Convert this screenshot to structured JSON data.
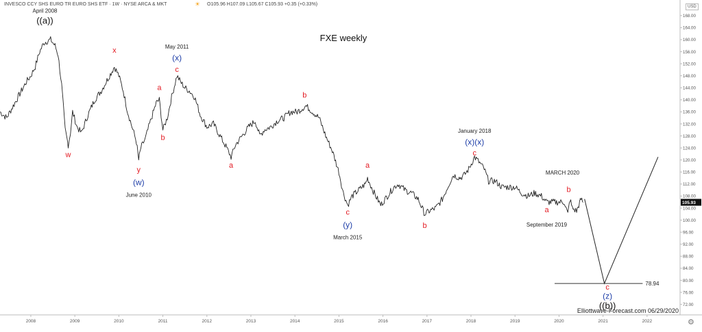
{
  "header": {
    "instrument": "INVESCO CCY SHS EURO TR EURO SHS ETF · 1W · NYSE ARCA & MKT",
    "ohlc": "O105.96 H107.09 L105.67 C105.93 +0.35 (+0.33%)",
    "currency": "USD",
    "sun_icon": "sun-icon",
    "gear_icon": "gear-icon"
  },
  "chart_data": {
    "type": "line",
    "title": "FXE weekly",
    "xlabel": "",
    "ylabel": "",
    "xlim": [
      2007.3,
      2022.75
    ],
    "ylim": [
      68.5,
      170
    ],
    "x_ticks": [
      "2008",
      "2009",
      "2010",
      "2011",
      "2012",
      "2013",
      "2014",
      "2015",
      "2016",
      "2017",
      "2018",
      "2019",
      "2020",
      "2021",
      "2022"
    ],
    "y_ticks": [
      "72.00",
      "76.00",
      "80.00",
      "84.00",
      "88.00",
      "92.00",
      "96.00",
      "100.00",
      "104.00",
      "108.00",
      "112.00",
      "116.00",
      "120.00",
      "124.00",
      "128.00",
      "132.00",
      "136.00",
      "140.00",
      "144.00",
      "148.00",
      "152.00",
      "156.00",
      "160.00",
      "164.00",
      "168.00"
    ],
    "last_price": "105.93",
    "level_line": {
      "value": 78.94,
      "label": "78.94",
      "x_start": 2019.9,
      "x_end": 2021.9
    },
    "series": [
      {
        "values": [
          [
            2007.3,
            136
          ],
          [
            2007.45,
            134
          ],
          [
            2007.6,
            138
          ],
          [
            2007.75,
            142
          ],
          [
            2007.9,
            146
          ],
          [
            2008.0,
            148
          ],
          [
            2008.1,
            151
          ],
          [
            2008.2,
            156
          ],
          [
            2008.3,
            159
          ],
          [
            2008.45,
            160
          ],
          [
            2008.55,
            158
          ],
          [
            2008.62,
            155
          ],
          [
            2008.7,
            145
          ],
          [
            2008.78,
            130
          ],
          [
            2008.85,
            125
          ],
          [
            2008.9,
            129
          ],
          [
            2008.95,
            136
          ],
          [
            2009.05,
            131
          ],
          [
            2009.15,
            129
          ],
          [
            2009.3,
            135
          ],
          [
            2009.45,
            140
          ],
          [
            2009.6,
            143
          ],
          [
            2009.75,
            147
          ],
          [
            2009.9,
            151
          ],
          [
            2010.0,
            148
          ],
          [
            2010.1,
            143
          ],
          [
            2010.2,
            136
          ],
          [
            2010.3,
            131
          ],
          [
            2010.4,
            126
          ],
          [
            2010.45,
            120
          ],
          [
            2010.5,
            124
          ],
          [
            2010.6,
            127
          ],
          [
            2010.7,
            132
          ],
          [
            2010.85,
            139
          ],
          [
            2010.92,
            140
          ],
          [
            2011.0,
            130
          ],
          [
            2011.1,
            134
          ],
          [
            2011.2,
            141
          ],
          [
            2011.32,
            148
          ],
          [
            2011.4,
            146
          ],
          [
            2011.5,
            144
          ],
          [
            2011.6,
            143
          ],
          [
            2011.72,
            141
          ],
          [
            2011.85,
            135
          ],
          [
            2012.0,
            131
          ],
          [
            2012.15,
            132
          ],
          [
            2012.3,
            128
          ],
          [
            2012.45,
            124
          ],
          [
            2012.55,
            121
          ],
          [
            2012.65,
            125
          ],
          [
            2012.8,
            128
          ],
          [
            2012.95,
            131
          ],
          [
            2013.1,
            133
          ],
          [
            2013.2,
            128
          ],
          [
            2013.3,
            130
          ],
          [
            2013.45,
            131
          ],
          [
            2013.6,
            133
          ],
          [
            2013.75,
            134
          ],
          [
            2013.9,
            136
          ],
          [
            2014.05,
            136
          ],
          [
            2014.15,
            137
          ],
          [
            2014.25,
            138
          ],
          [
            2014.4,
            136
          ],
          [
            2014.55,
            134
          ],
          [
            2014.7,
            128
          ],
          [
            2014.85,
            123
          ],
          [
            2015.0,
            116
          ],
          [
            2015.1,
            109
          ],
          [
            2015.2,
            105
          ],
          [
            2015.3,
            108
          ],
          [
            2015.45,
            110
          ],
          [
            2015.6,
            112
          ],
          [
            2015.65,
            114
          ],
          [
            2015.8,
            109
          ],
          [
            2015.95,
            105
          ],
          [
            2016.1,
            108
          ],
          [
            2016.25,
            111
          ],
          [
            2016.35,
            112
          ],
          [
            2016.5,
            110
          ],
          [
            2016.65,
            109
          ],
          [
            2016.8,
            107
          ],
          [
            2016.95,
            102
          ],
          [
            2017.05,
            103
          ],
          [
            2017.2,
            104
          ],
          [
            2017.35,
            107
          ],
          [
            2017.5,
            112
          ],
          [
            2017.6,
            115
          ],
          [
            2017.75,
            114
          ],
          [
            2017.85,
            115
          ],
          [
            2017.95,
            117
          ],
          [
            2018.08,
            121
          ],
          [
            2018.2,
            119
          ],
          [
            2018.3,
            117
          ],
          [
            2018.4,
            113
          ],
          [
            2018.55,
            113
          ],
          [
            2018.7,
            111
          ],
          [
            2018.85,
            111
          ],
          [
            2019.0,
            111
          ],
          [
            2019.15,
            109
          ],
          [
            2019.3,
            108
          ],
          [
            2019.45,
            109
          ],
          [
            2019.6,
            108
          ],
          [
            2019.72,
            106
          ],
          [
            2019.85,
            106
          ],
          [
            2020.0,
            106
          ],
          [
            2020.12,
            106
          ],
          [
            2020.2,
            102
          ],
          [
            2020.25,
            107
          ],
          [
            2020.3,
            104
          ],
          [
            2020.4,
            103
          ],
          [
            2020.45,
            105
          ],
          [
            2020.5,
            107
          ],
          [
            2020.55,
            105.93
          ]
        ]
      },
      {
        "values": [
          [
            2020.58,
            107
          ],
          [
            2021.03,
            78.94
          ],
          [
            2022.25,
            121
          ]
        ]
      }
    ],
    "annotations": [
      {
        "text": "April 2008",
        "x": 2008.32,
        "y": 169.0,
        "color": "#222222",
        "size": 8
      },
      {
        "text": "((a))",
        "x": 2008.32,
        "y": 165.3,
        "color": "#111111",
        "size": 13
      },
      {
        "text": "x",
        "x": 2009.9,
        "y": 155.7,
        "color": "#e31b23",
        "size": 11
      },
      {
        "text": "w",
        "x": 2008.85,
        "y": 121.0,
        "color": "#e31b23",
        "size": 11
      },
      {
        "text": "y",
        "x": 2010.45,
        "y": 116.0,
        "color": "#e31b23",
        "size": 11
      },
      {
        "text": "(w)",
        "x": 2010.45,
        "y": 111.6,
        "color": "#1f3fa8",
        "size": 12
      },
      {
        "text": "June 2010",
        "x": 2010.45,
        "y": 107.8,
        "color": "#222222",
        "size": 8
      },
      {
        "text": "May 2011",
        "x": 2011.32,
        "y": 157.0,
        "color": "#222222",
        "size": 8
      },
      {
        "text": "(x)",
        "x": 2011.32,
        "y": 153.0,
        "color": "#1f3fa8",
        "size": 12
      },
      {
        "text": "c",
        "x": 2011.32,
        "y": 149.3,
        "color": "#e31b23",
        "size": 11
      },
      {
        "text": "a",
        "x": 2010.92,
        "y": 143.3,
        "color": "#e31b23",
        "size": 11
      },
      {
        "text": "b",
        "x": 2011.0,
        "y": 126.6,
        "color": "#e31b23",
        "size": 11
      },
      {
        "text": "a",
        "x": 2012.55,
        "y": 117.4,
        "color": "#e31b23",
        "size": 11
      },
      {
        "text": "b",
        "x": 2014.22,
        "y": 140.7,
        "color": "#e31b23",
        "size": 11
      },
      {
        "text": "c",
        "x": 2015.2,
        "y": 101.8,
        "color": "#e31b23",
        "size": 11
      },
      {
        "text": "(y)",
        "x": 2015.2,
        "y": 97.5,
        "color": "#1f3fa8",
        "size": 12
      },
      {
        "text": "March 2015",
        "x": 2015.2,
        "y": 93.6,
        "color": "#222222",
        "size": 8
      },
      {
        "text": "a",
        "x": 2015.65,
        "y": 117.4,
        "color": "#e31b23",
        "size": 11
      },
      {
        "text": "b",
        "x": 2016.95,
        "y": 97.4,
        "color": "#e31b23",
        "size": 11
      },
      {
        "text": "January 2018",
        "x": 2018.08,
        "y": 129.0,
        "color": "#222222",
        "size": 8
      },
      {
        "text": "(x)(x)",
        "x": 2018.08,
        "y": 125.0,
        "color": "#1f3fa8",
        "size": 12
      },
      {
        "text": "c",
        "x": 2018.08,
        "y": 121.5,
        "color": "#e31b23",
        "size": 11
      },
      {
        "text": "MARCH 2020",
        "x": 2020.08,
        "y": 115.1,
        "color": "#222222",
        "size": 8
      },
      {
        "text": "b",
        "x": 2020.22,
        "y": 109.4,
        "color": "#e31b23",
        "size": 11
      },
      {
        "text": "a",
        "x": 2019.72,
        "y": 102.6,
        "color": "#e31b23",
        "size": 11
      },
      {
        "text": "September 2019",
        "x": 2019.72,
        "y": 97.9,
        "color": "#222222",
        "size": 8
      },
      {
        "text": "c",
        "x": 2021.1,
        "y": 76.9,
        "color": "#e31b23",
        "size": 11
      },
      {
        "text": "(z)",
        "x": 2021.1,
        "y": 73.9,
        "color": "#1f3fa8",
        "size": 12
      },
      {
        "text": "((b))",
        "x": 2021.1,
        "y": 70.6,
        "color": "#111111",
        "size": 13
      }
    ],
    "watermark": "Elliottwave-Forecast.com 06/29/2020",
    "grid": false,
    "legend": "none",
    "colors": {
      "price": "#222222",
      "projection": "#222222",
      "red_label": "#e31b23",
      "blue_label": "#1f3fa8",
      "axis": "#bbbbbb",
      "tick_text": "#555555",
      "price_tag": "#111111"
    }
  }
}
